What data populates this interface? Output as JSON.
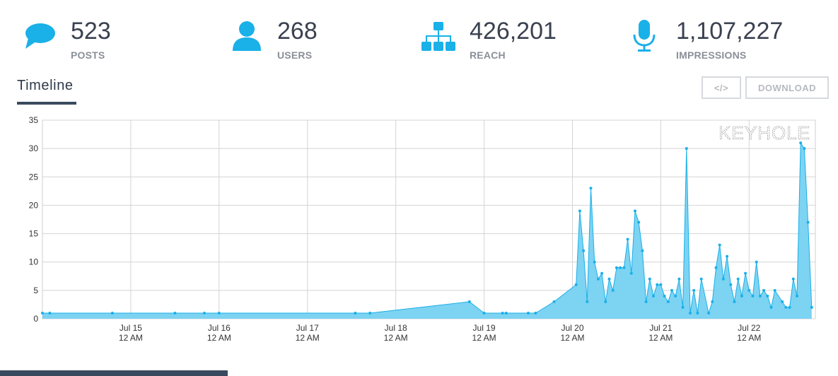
{
  "stats": [
    {
      "value": "523",
      "label": "POSTS",
      "icon": "speech-bubble-icon"
    },
    {
      "value": "268",
      "label": "USERS",
      "icon": "user-icon"
    },
    {
      "value": "426,201",
      "label": "REACH",
      "icon": "sitemap-icon"
    },
    {
      "value": "1,107,227",
      "label": "IMPRESSIONS",
      "icon": "microphone-icon"
    }
  ],
  "colors": {
    "accent": "#1ab0e8",
    "area": "#7dd3f2",
    "dark": "#3a4a5e"
  },
  "tab": {
    "label": "Timeline"
  },
  "buttons": {
    "embed": "</>",
    "download": "DOWNLOAD"
  },
  "watermark": "KEYHOLE",
  "chart_data": {
    "type": "area",
    "ylim": [
      0,
      35
    ],
    "yticks": [
      0,
      5,
      10,
      15,
      20,
      25,
      30,
      35
    ],
    "xlim": [
      "2019-07-14T00:00",
      "2019-07-22T18:00"
    ],
    "xticks": [
      {
        "date": "2019-07-15T00:00",
        "line1": "Jul 15",
        "line2": "12 AM"
      },
      {
        "date": "2019-07-16T00:00",
        "line1": "Jul 16",
        "line2": "12 AM"
      },
      {
        "date": "2019-07-17T00:00",
        "line1": "Jul 17",
        "line2": "12 AM"
      },
      {
        "date": "2019-07-18T00:00",
        "line1": "Jul 18",
        "line2": "12 AM"
      },
      {
        "date": "2019-07-19T00:00",
        "line1": "Jul 19",
        "line2": "12 AM"
      },
      {
        "date": "2019-07-20T00:00",
        "line1": "Jul 20",
        "line2": "12 AM"
      },
      {
        "date": "2019-07-21T00:00",
        "line1": "Jul 21",
        "line2": "12 AM"
      },
      {
        "date": "2019-07-22T00:00",
        "line1": "Jul 22",
        "line2": "12 AM"
      }
    ],
    "grid": true,
    "points": [
      [
        "2019-07-14T00:00",
        1
      ],
      [
        "2019-07-14T02:00",
        1
      ],
      [
        "2019-07-14T19:00",
        1
      ],
      [
        "2019-07-15T12:00",
        1
      ],
      [
        "2019-07-15T20:00",
        1
      ],
      [
        "2019-07-16T00:00",
        1
      ],
      [
        "2019-07-17T13:00",
        1
      ],
      [
        "2019-07-17T17:00",
        1
      ],
      [
        "2019-07-18T20:00",
        3
      ],
      [
        "2019-07-19T00:00",
        1
      ],
      [
        "2019-07-19T05:00",
        1
      ],
      [
        "2019-07-19T06:00",
        1
      ],
      [
        "2019-07-19T12:00",
        1
      ],
      [
        "2019-07-19T14:00",
        1
      ],
      [
        "2019-07-19T19:00",
        3
      ],
      [
        "2019-07-20T01:00",
        6
      ],
      [
        "2019-07-20T02:00",
        19
      ],
      [
        "2019-07-20T03:00",
        12
      ],
      [
        "2019-07-20T04:00",
        3
      ],
      [
        "2019-07-20T05:00",
        23
      ],
      [
        "2019-07-20T06:00",
        10
      ],
      [
        "2019-07-20T07:00",
        7
      ],
      [
        "2019-07-20T08:00",
        8
      ],
      [
        "2019-07-20T09:00",
        3
      ],
      [
        "2019-07-20T10:00",
        7
      ],
      [
        "2019-07-20T11:00",
        5
      ],
      [
        "2019-07-20T12:00",
        9
      ],
      [
        "2019-07-20T13:00",
        9
      ],
      [
        "2019-07-20T14:00",
        9
      ],
      [
        "2019-07-20T15:00",
        14
      ],
      [
        "2019-07-20T16:00",
        8
      ],
      [
        "2019-07-20T17:00",
        19
      ],
      [
        "2019-07-20T18:00",
        17
      ],
      [
        "2019-07-20T19:00",
        12
      ],
      [
        "2019-07-20T20:00",
        3
      ],
      [
        "2019-07-20T21:00",
        7
      ],
      [
        "2019-07-20T22:00",
        4
      ],
      [
        "2019-07-20T23:00",
        6
      ],
      [
        "2019-07-21T00:00",
        6
      ],
      [
        "2019-07-21T01:00",
        4
      ],
      [
        "2019-07-21T02:00",
        3
      ],
      [
        "2019-07-21T03:00",
        5
      ],
      [
        "2019-07-21T04:00",
        4
      ],
      [
        "2019-07-21T05:00",
        7
      ],
      [
        "2019-07-21T06:00",
        2
      ],
      [
        "2019-07-21T07:00",
        30
      ],
      [
        "2019-07-21T08:00",
        1
      ],
      [
        "2019-07-21T09:00",
        5
      ],
      [
        "2019-07-21T10:00",
        1
      ],
      [
        "2019-07-21T11:00",
        7
      ],
      [
        "2019-07-21T13:00",
        1
      ],
      [
        "2019-07-21T14:00",
        3
      ],
      [
        "2019-07-21T15:00",
        9
      ],
      [
        "2019-07-21T16:00",
        13
      ],
      [
        "2019-07-21T17:00",
        7
      ],
      [
        "2019-07-21T18:00",
        11
      ],
      [
        "2019-07-21T19:00",
        6
      ],
      [
        "2019-07-21T20:00",
        3
      ],
      [
        "2019-07-21T21:00",
        7
      ],
      [
        "2019-07-21T22:00",
        4
      ],
      [
        "2019-07-21T23:00",
        8
      ],
      [
        "2019-07-22T00:00",
        5
      ],
      [
        "2019-07-22T01:00",
        4
      ],
      [
        "2019-07-22T02:00",
        10
      ],
      [
        "2019-07-22T03:00",
        4
      ],
      [
        "2019-07-22T04:00",
        5
      ],
      [
        "2019-07-22T05:00",
        4
      ],
      [
        "2019-07-22T06:00",
        2
      ],
      [
        "2019-07-22T07:00",
        5
      ],
      [
        "2019-07-22T09:00",
        3
      ],
      [
        "2019-07-22T10:00",
        2
      ],
      [
        "2019-07-22T11:00",
        2
      ],
      [
        "2019-07-22T12:00",
        7
      ],
      [
        "2019-07-22T13:00",
        4
      ],
      [
        "2019-07-22T14:00",
        31
      ],
      [
        "2019-07-22T15:00",
        30
      ],
      [
        "2019-07-22T16:00",
        17
      ],
      [
        "2019-07-22T17:00",
        2
      ]
    ]
  }
}
